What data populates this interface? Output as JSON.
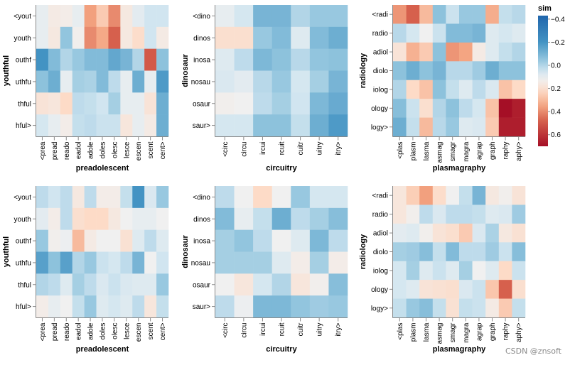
{
  "watermark": "CSDN @znsoft",
  "legend": {
    "title": "sim",
    "ticks": [
      "-0.4",
      "-0.2",
      "0.0",
      "0.2",
      "0.4",
      "0.6"
    ],
    "tick_values": [
      -0.4,
      -0.2,
      0.0,
      0.2,
      0.4,
      0.6
    ],
    "domain": [
      -0.43,
      0.7
    ]
  },
  "chart_data": [
    {
      "type": "heatmap",
      "panel": "top-left",
      "xlabel": "preadolescent",
      "ylabel": "youthful",
      "x": [
        "<prea",
        "pread",
        "reado",
        "eadol",
        "adole",
        "doles",
        "olesc",
        "lesce",
        "escen",
        "scent",
        "cent>"
      ],
      "y": [
        "<yout",
        "youth",
        "outhf",
        "uthfu",
        "thful",
        "hful>"
      ],
      "values": [
        [
          0.1,
          0.15,
          0.14,
          0.1,
          0.36,
          0.26,
          0.4,
          0.16,
          0.09,
          0.05,
          0.05
        ],
        [
          0.1,
          0.16,
          -0.05,
          0.13,
          0.4,
          0.34,
          0.48,
          0.16,
          0.21,
          0.05,
          0.15
        ],
        [
          -0.2,
          -0.08,
          0.0,
          -0.04,
          -0.08,
          -0.08,
          -0.14,
          -0.1,
          0.0,
          0.5,
          -0.06
        ],
        [
          -0.06,
          -0.12,
          0.1,
          -0.02,
          -0.01,
          -0.08,
          0.02,
          0.1,
          -0.12,
          0.1,
          -0.18
        ],
        [
          0.18,
          0.17,
          0.22,
          0.02,
          0.03,
          0.05,
          -0.02,
          0.1,
          0.1,
          0.18,
          -0.12
        ],
        [
          0.06,
          0.1,
          0.14,
          0.03,
          0.02,
          0.04,
          0.04,
          0.17,
          0.1,
          0.15,
          -0.12
        ]
      ]
    },
    {
      "type": "heatmap",
      "panel": "top-middle",
      "xlabel": "circuitry",
      "ylabel": "dinosaur",
      "x": [
        "<circ",
        "circu",
        "ircui",
        "rcuit",
        "cuitr",
        "uitry",
        "itry>"
      ],
      "y": [
        "<dino",
        "dinos",
        "inosa",
        "nosau",
        "osaur",
        "saur>"
      ],
      "values": [
        [
          0.1,
          0.06,
          -0.1,
          -0.1,
          0.0,
          -0.04,
          -0.04
        ],
        [
          0.2,
          0.2,
          -0.04,
          -0.08,
          0.08,
          -0.08,
          -0.12
        ],
        [
          0.08,
          0.02,
          -0.09,
          -0.06,
          0.01,
          -0.05,
          -0.06
        ],
        [
          0.07,
          0.09,
          0.01,
          -0.04,
          0.06,
          -0.02,
          -0.1
        ],
        [
          0.13,
          0.12,
          0.02,
          -0.02,
          0.05,
          -0.09,
          -0.13
        ],
        [
          0.06,
          0.06,
          -0.06,
          -0.06,
          0.03,
          -0.12,
          -0.18
        ]
      ]
    },
    {
      "type": "heatmap",
      "panel": "top-right",
      "xlabel": "plasmagraphy",
      "ylabel": "radiology",
      "x": [
        "<plas",
        "plasm",
        "lasma",
        "asmag",
        "smagr",
        "magra",
        "agrap",
        "graph",
        "raphy",
        "aphy>"
      ],
      "y": [
        "<radi",
        "radio",
        "adiol",
        "diolo",
        "iolog",
        "ology",
        "logy>"
      ],
      "values": [
        [
          0.38,
          0.48,
          0.3,
          -0.06,
          0.04,
          -0.04,
          -0.04,
          0.33,
          0.03,
          0.01
        ],
        [
          0.01,
          0.06,
          0.12,
          0.04,
          -0.08,
          -0.08,
          -0.1,
          0.08,
          0.06,
          0.08
        ],
        [
          0.18,
          0.32,
          0.26,
          -0.06,
          0.38,
          0.35,
          0.15,
          0.08,
          0.03,
          0.0
        ],
        [
          -0.06,
          -0.12,
          -0.06,
          -0.1,
          0.01,
          0.01,
          -0.03,
          -0.12,
          -0.06,
          -0.06
        ],
        [
          0.0,
          0.22,
          0.28,
          -0.06,
          0.03,
          0.08,
          0.02,
          0.07,
          0.28,
          0.22
        ],
        [
          -0.07,
          0.04,
          0.2,
          0.0,
          -0.06,
          0.02,
          0.06,
          0.28,
          0.7,
          0.66
        ],
        [
          -0.12,
          0.03,
          0.3,
          0.01,
          -0.04,
          0.08,
          0.07,
          0.26,
          0.66,
          0.66
        ]
      ]
    },
    {
      "type": "heatmap",
      "panel": "bottom-left",
      "xlabel": "preadolescent",
      "ylabel": "youthful",
      "x": [
        "<prea",
        "pread",
        "reado",
        "eadol",
        "adole",
        "doles",
        "olesc",
        "lesce",
        "escen",
        "scent",
        "cent>"
      ],
      "y": [
        "<yout",
        "youth",
        "outhf",
        "uthfu",
        "thful",
        "hful>"
      ],
      "values": [
        [
          0.02,
          0.05,
          0.02,
          0.16,
          0.02,
          0.14,
          0.14,
          0.03,
          -0.2,
          0.07,
          -0.04
        ],
        [
          0.09,
          0.14,
          0.02,
          0.2,
          0.22,
          0.22,
          0.16,
          0.12,
          0.1,
          0.1,
          0.12
        ],
        [
          -0.04,
          0.13,
          0.11,
          0.3,
          0.15,
          0.12,
          0.12,
          0.19,
          0.08,
          0.02,
          0.08
        ],
        [
          -0.16,
          -0.06,
          -0.16,
          0.0,
          -0.04,
          0.04,
          0.06,
          0.02,
          -0.1,
          0.12,
          0.05
        ],
        [
          0.0,
          0.02,
          0.08,
          -0.02,
          0.02,
          0.07,
          0.04,
          0.07,
          0.08,
          0.08,
          -0.04
        ],
        [
          0.14,
          0.1,
          0.12,
          0.03,
          -0.04,
          0.08,
          0.06,
          0.08,
          0.02,
          0.17,
          0.03
        ]
      ]
    },
    {
      "type": "heatmap",
      "panel": "bottom-middle",
      "xlabel": "circuitry",
      "ylabel": "dinosaur",
      "x": [
        "<circ",
        "circu",
        "ircui",
        "rcuit",
        "cuitr",
        "uitry",
        "itry>"
      ],
      "y": [
        "<dino",
        "dinos",
        "inosa",
        "nosau",
        "osaur",
        "saur>"
      ],
      "values": [
        [
          0.02,
          0.12,
          0.22,
          0.12,
          -0.04,
          0.06,
          0.06
        ],
        [
          -0.08,
          0.1,
          0.03,
          -0.12,
          0.02,
          -0.02,
          -0.07
        ],
        [
          -0.02,
          -0.05,
          0.02,
          0.12,
          0.08,
          -0.09,
          0.02
        ],
        [
          -0.02,
          -0.02,
          -0.02,
          0.08,
          0.14,
          -0.02,
          0.14
        ],
        [
          0.12,
          0.17,
          0.06,
          0.0,
          0.17,
          0.13,
          -0.07
        ],
        [
          0.02,
          0.11,
          -0.09,
          -0.09,
          -0.05,
          -0.03,
          -0.04
        ]
      ]
    },
    {
      "type": "heatmap",
      "panel": "bottom-right",
      "xlabel": "plasmagraphy",
      "ylabel": "radiology",
      "x": [
        "<plas",
        "plasm",
        "lasma",
        "asmag",
        "smagr",
        "magra",
        "agrap",
        "graph",
        "raphy",
        "aphy>"
      ],
      "y": [
        "<radi",
        "radio",
        "adiol",
        "diolo",
        "iolog",
        "ology",
        "logy>"
      ],
      "values": [
        [
          0.17,
          0.25,
          0.36,
          0.21,
          0.12,
          0.03,
          -0.1,
          0.16,
          0.13,
          0.18
        ],
        [
          0.17,
          0.13,
          0.02,
          0.07,
          0.02,
          0.02,
          0.03,
          0.08,
          0.07,
          -0.03
        ],
        [
          0.09,
          0.08,
          0.13,
          0.18,
          0.2,
          0.26,
          0.07,
          -0.01,
          0.16,
          0.19
        ],
        [
          -0.02,
          -0.03,
          -0.07,
          0.03,
          -0.08,
          0.02,
          0.02,
          -0.03,
          0.04,
          -0.07
        ],
        [
          0.06,
          -0.02,
          0.08,
          0.04,
          0.08,
          -0.02,
          0.12,
          0.08,
          0.22,
          0.04
        ],
        [
          0.06,
          0.08,
          0.18,
          0.19,
          0.2,
          0.07,
          0.04,
          0.27,
          0.48,
          0.2
        ],
        [
          0.03,
          -0.04,
          -0.07,
          0.03,
          0.19,
          0.03,
          0.04,
          0.15,
          0.26,
          0.03
        ]
      ]
    }
  ]
}
